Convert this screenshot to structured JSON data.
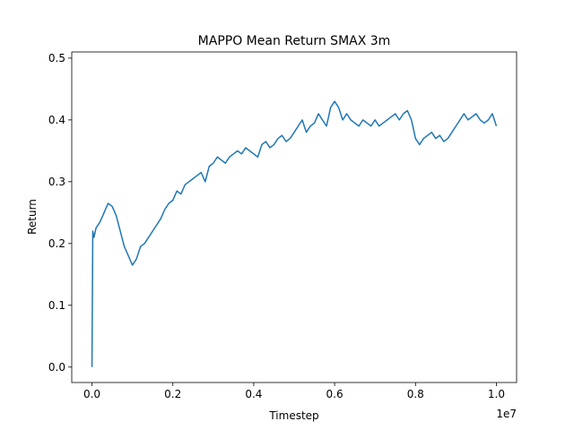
{
  "chart_data": {
    "type": "line",
    "title": "MAPPO Mean Return SMAX 3m",
    "xlabel": "Timestep",
    "ylabel": "Return",
    "x_offset_label": "1e7",
    "xlim": [
      -0.05,
      1.05
    ],
    "ylim": [
      -0.025,
      0.51
    ],
    "x_ticks": [
      0.0,
      0.2,
      0.4,
      0.6,
      0.8,
      1.0
    ],
    "x_tick_labels": [
      "0.0",
      "0.2",
      "0.4",
      "0.6",
      "0.8",
      "1.0"
    ],
    "y_ticks": [
      0.0,
      0.1,
      0.2,
      0.3,
      0.4,
      0.5
    ],
    "y_tick_labels": [
      "0.0",
      "0.1",
      "0.2",
      "0.3",
      "0.4",
      "0.5"
    ],
    "grid": false,
    "series": [
      {
        "color": "#1f77b4",
        "x": [
          0.0,
          0.002,
          0.005,
          0.01,
          0.02,
          0.03,
          0.04,
          0.05,
          0.06,
          0.07,
          0.08,
          0.09,
          0.1,
          0.11,
          0.12,
          0.13,
          0.14,
          0.15,
          0.16,
          0.17,
          0.18,
          0.19,
          0.2,
          0.21,
          0.22,
          0.23,
          0.24,
          0.25,
          0.26,
          0.27,
          0.28,
          0.29,
          0.3,
          0.31,
          0.32,
          0.33,
          0.34,
          0.35,
          0.36,
          0.37,
          0.38,
          0.39,
          0.4,
          0.41,
          0.42,
          0.43,
          0.44,
          0.45,
          0.46,
          0.47,
          0.48,
          0.49,
          0.5,
          0.51,
          0.52,
          0.53,
          0.54,
          0.55,
          0.56,
          0.57,
          0.58,
          0.59,
          0.6,
          0.61,
          0.62,
          0.63,
          0.64,
          0.65,
          0.66,
          0.67,
          0.68,
          0.69,
          0.7,
          0.71,
          0.72,
          0.73,
          0.74,
          0.75,
          0.76,
          0.77,
          0.78,
          0.79,
          0.8,
          0.81,
          0.82,
          0.83,
          0.84,
          0.85,
          0.86,
          0.87,
          0.88,
          0.89,
          0.9,
          0.91,
          0.92,
          0.93,
          0.94,
          0.95,
          0.96,
          0.97,
          0.98,
          0.99,
          1.0
        ],
        "y": [
          0.0,
          0.22,
          0.21,
          0.225,
          0.235,
          0.25,
          0.265,
          0.26,
          0.245,
          0.22,
          0.195,
          0.18,
          0.165,
          0.175,
          0.195,
          0.2,
          0.21,
          0.22,
          0.23,
          0.24,
          0.255,
          0.265,
          0.27,
          0.285,
          0.28,
          0.295,
          0.3,
          0.305,
          0.31,
          0.315,
          0.3,
          0.325,
          0.33,
          0.34,
          0.335,
          0.33,
          0.34,
          0.345,
          0.35,
          0.345,
          0.355,
          0.35,
          0.345,
          0.34,
          0.36,
          0.365,
          0.355,
          0.36,
          0.37,
          0.375,
          0.365,
          0.37,
          0.38,
          0.39,
          0.4,
          0.38,
          0.39,
          0.395,
          0.41,
          0.4,
          0.39,
          0.42,
          0.43,
          0.42,
          0.4,
          0.41,
          0.4,
          0.395,
          0.39,
          0.4,
          0.395,
          0.39,
          0.4,
          0.39,
          0.395,
          0.4,
          0.405,
          0.41,
          0.4,
          0.41,
          0.415,
          0.4,
          0.37,
          0.36,
          0.37,
          0.375,
          0.38,
          0.37,
          0.375,
          0.365,
          0.37,
          0.38,
          0.39,
          0.4,
          0.41,
          0.4,
          0.405,
          0.41,
          0.4,
          0.395,
          0.4,
          0.41,
          0.39
        ]
      }
    ]
  }
}
